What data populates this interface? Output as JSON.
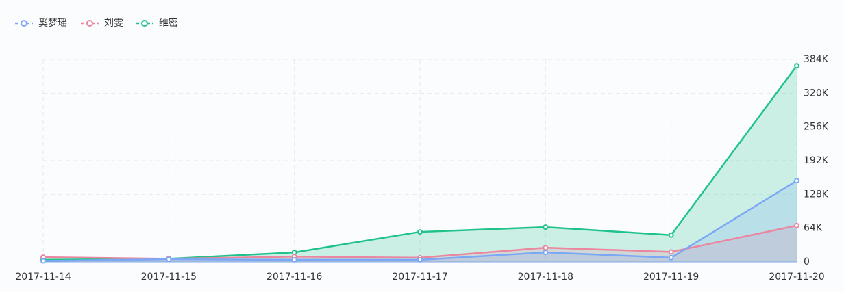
{
  "chart_data": {
    "type": "area-line",
    "categories": [
      "2017-11-14",
      "2017-11-15",
      "2017-11-16",
      "2017-11-17",
      "2017-11-18",
      "2017-11-19",
      "2017-11-20"
    ],
    "series": [
      {
        "name": "奚梦瑶",
        "color": "#7ba7f7",
        "values": [
          2000,
          5000,
          4000,
          4000,
          18000,
          8000,
          154000
        ]
      },
      {
        "name": "刘雯",
        "color": "#ea869f",
        "values": [
          9000,
          6000,
          10000,
          8000,
          27000,
          19000,
          69000
        ]
      },
      {
        "name": "维密",
        "color": "#1fc38a",
        "values": [
          4000,
          6000,
          18000,
          57000,
          66000,
          51000,
          372000
        ]
      }
    ],
    "ylim": [
      0,
      384000
    ],
    "yticks": [
      {
        "value": 0,
        "label": "0"
      },
      {
        "value": 64000,
        "label": "64K"
      },
      {
        "value": 128000,
        "label": "128K"
      },
      {
        "value": 192000,
        "label": "192K"
      },
      {
        "value": 256000,
        "label": "256K"
      },
      {
        "value": 320000,
        "label": "320K"
      },
      {
        "value": 384000,
        "label": "384K"
      }
    ],
    "grid": true,
    "legend": "top-left"
  }
}
